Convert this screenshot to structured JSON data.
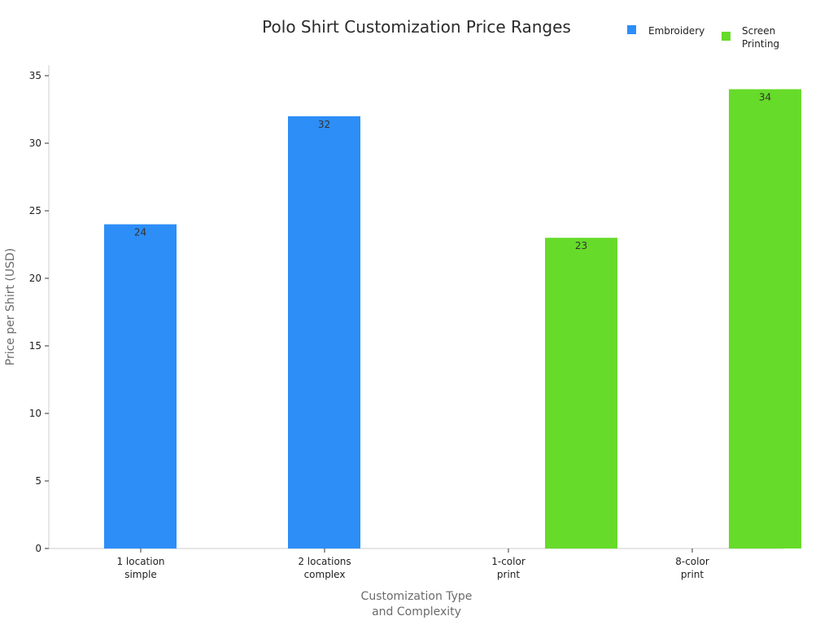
{
  "chart_data": {
    "type": "bar",
    "title": "Polo Shirt Customization Price Ranges",
    "xlabel": [
      "Customization Type",
      "and Complexity"
    ],
    "ylabel": "Price per Shirt (USD)",
    "ylim": [
      0,
      35
    ],
    "yticks": [
      0,
      5,
      10,
      15,
      20,
      25,
      30,
      35
    ],
    "grid": false,
    "legend_position": "top-right",
    "categories": [
      [
        "1 location",
        "simple"
      ],
      [
        "2 locations",
        "complex"
      ],
      [
        "1-color",
        "print"
      ],
      [
        "8-color",
        "print"
      ]
    ],
    "series": [
      {
        "name": [
          "Embroidery"
        ],
        "color": "#2d8ef7",
        "values": [
          24,
          32,
          null,
          null
        ]
      },
      {
        "name": [
          "Screen",
          "Printing"
        ],
        "color": "#66db29",
        "values": [
          null,
          null,
          23,
          34
        ]
      }
    ]
  }
}
